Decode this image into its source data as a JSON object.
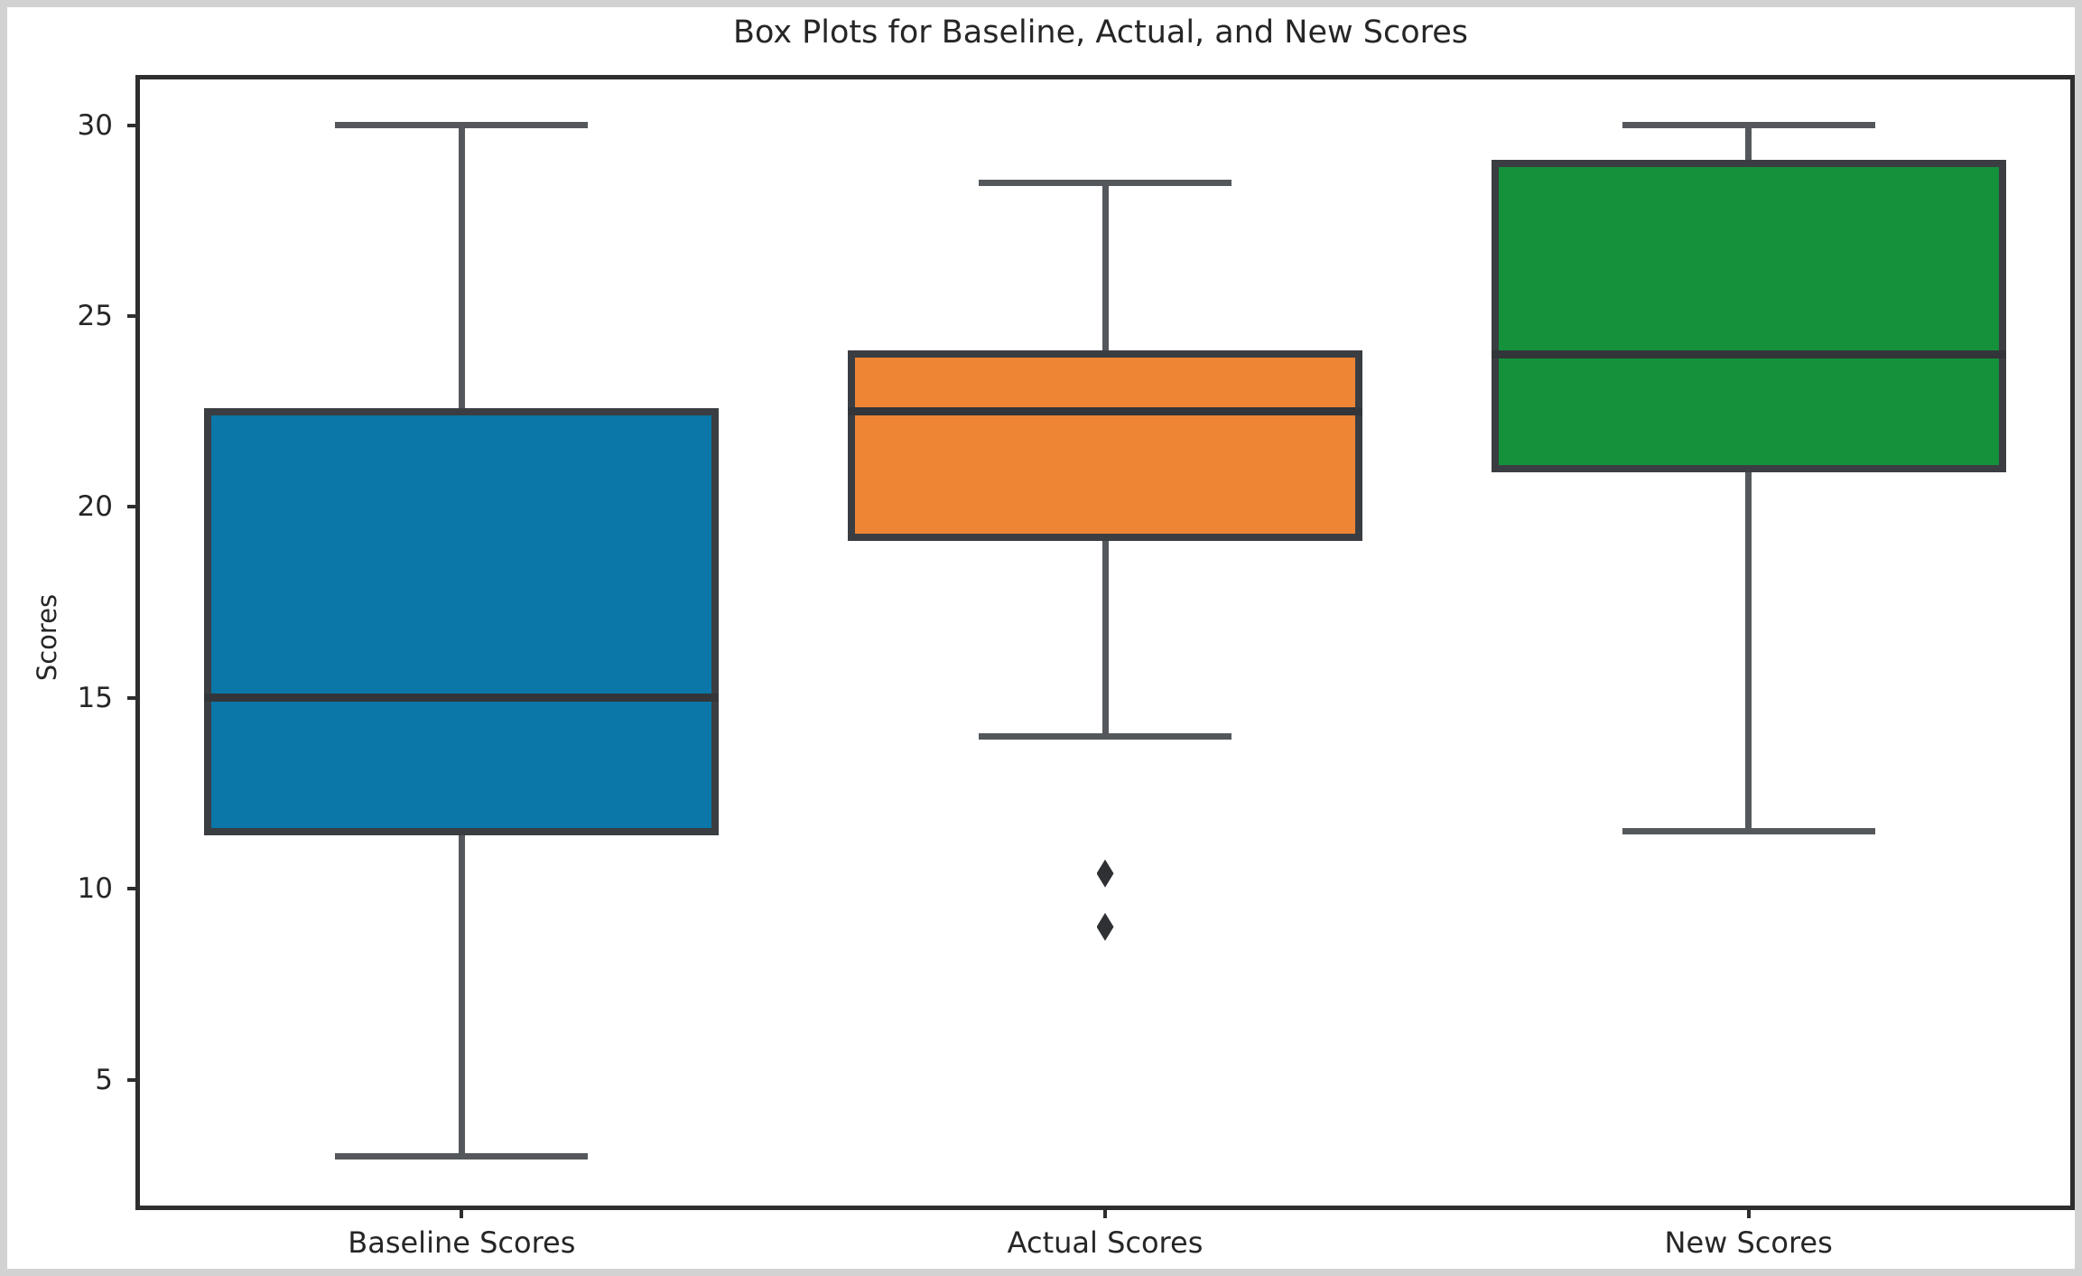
{
  "figure": {
    "title": "Box Plots for Baseline, Actual, and New Scores",
    "ylabel": "Scores"
  },
  "chart_data": {
    "type": "box",
    "title": "Box Plots for Baseline, Actual, and New Scores",
    "xlabel": "",
    "ylabel": "Scores",
    "categories": [
      "Baseline Scores",
      "Actual Scores",
      "New Scores"
    ],
    "yticks": [
      5,
      10,
      15,
      20,
      25,
      30
    ],
    "ylim": [
      1.7,
      31.2
    ],
    "grid": false,
    "legend": "none",
    "series": [
      {
        "name": "Baseline Scores",
        "color": "#0b76a8",
        "whisker_low": 3,
        "q1": 11.5,
        "median": 15,
        "q3": 22.5,
        "whisker_high": 30,
        "outliers": []
      },
      {
        "name": "Actual Scores",
        "color": "#ee8535",
        "whisker_low": 14,
        "q1": 19.2,
        "median": 22.5,
        "q3": 24,
        "whisker_high": 28.5,
        "outliers": [
          10.4,
          9.0
        ]
      },
      {
        "name": "New Scores",
        "color": "#15913c",
        "whisker_low": 11.5,
        "q1": 21,
        "median": 24,
        "q3": 29,
        "whisker_high": 30,
        "outliers": []
      }
    ],
    "styles": {
      "box_edge_color": "#3a3e42",
      "whisker_color": "#54585c",
      "median_color": "#323539",
      "outlier_color": "#2e3033",
      "spine_color": "#2e2e2e",
      "text_color": "#262626",
      "background": "#ffffff"
    }
  }
}
